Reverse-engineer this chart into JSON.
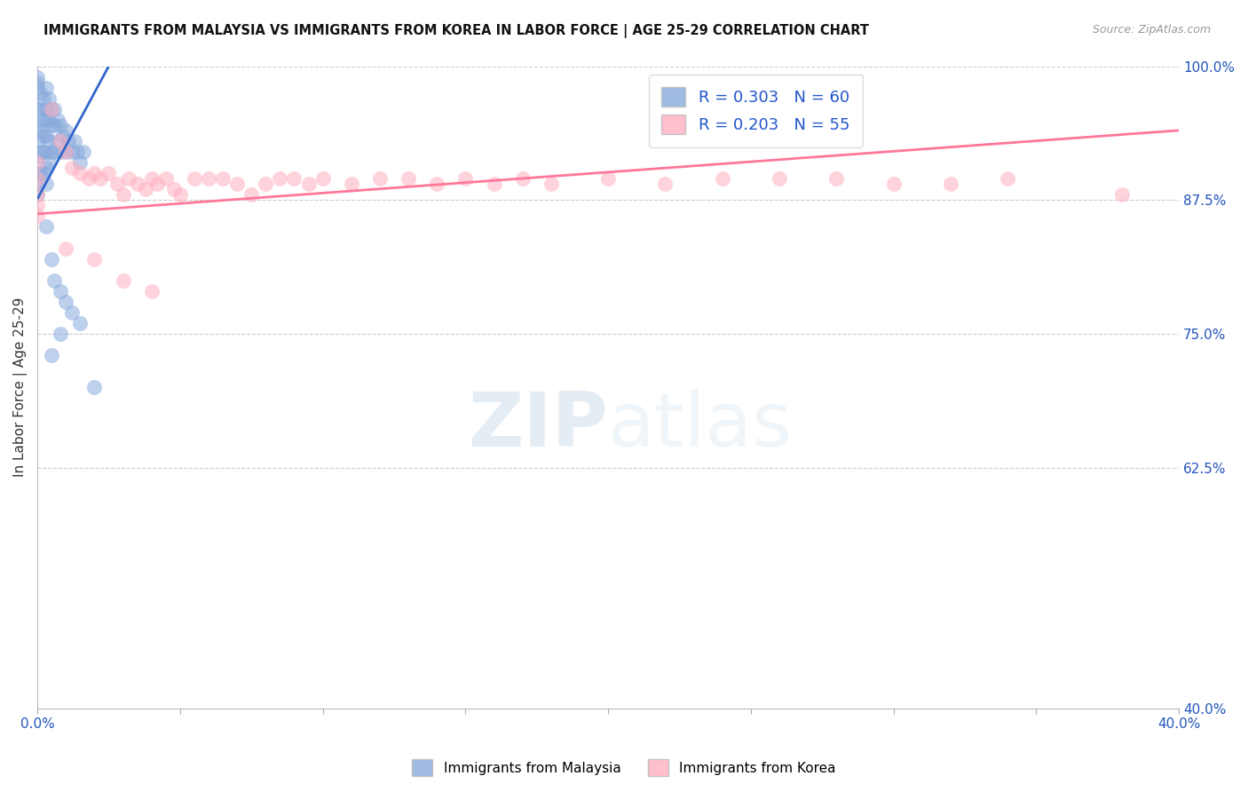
{
  "title": "IMMIGRANTS FROM MALAYSIA VS IMMIGRANTS FROM KOREA IN LABOR FORCE | AGE 25-29 CORRELATION CHART",
  "source": "Source: ZipAtlas.com",
  "ylabel": "In Labor Force | Age 25-29",
  "xlim": [
    0.0,
    0.4
  ],
  "ylim": [
    0.4,
    1.0
  ],
  "xticks": [
    0.0,
    0.05,
    0.1,
    0.15,
    0.2,
    0.25,
    0.3,
    0.35,
    0.4
  ],
  "xticklabels": [
    "0.0%",
    "",
    "",
    "",
    "",
    "",
    "",
    "",
    "40.0%"
  ],
  "yticks": [
    0.4,
    0.625,
    0.75,
    0.875,
    1.0
  ],
  "yticklabels": [
    "40.0%",
    "62.5%",
    "75.0%",
    "87.5%",
    "100.0%"
  ],
  "malaysia_R": 0.303,
  "malaysia_N": 60,
  "korea_R": 0.203,
  "korea_N": 55,
  "malaysia_color": "#88AADD",
  "korea_color": "#FFB0C0",
  "malaysia_line_color": "#3366CC",
  "korea_line_color": "#FF7799",
  "legend_r_color": "#2255CC",
  "malaysia_x": [
    0.0,
    0.0,
    0.0,
    0.0,
    0.0,
    0.0,
    0.0,
    0.0,
    0.0,
    0.0,
    0.001,
    0.001,
    0.001,
    0.001,
    0.001,
    0.002,
    0.002,
    0.002,
    0.002,
    0.002,
    0.003,
    0.003,
    0.003,
    0.003,
    0.003,
    0.003,
    0.003,
    0.004,
    0.004,
    0.004,
    0.004,
    0.005,
    0.005,
    0.005,
    0.006,
    0.006,
    0.006,
    0.007,
    0.007,
    0.008,
    0.008,
    0.009,
    0.01,
    0.01,
    0.011,
    0.012,
    0.013,
    0.014,
    0.015,
    0.016,
    0.003,
    0.005,
    0.006,
    0.008,
    0.01,
    0.012,
    0.015,
    0.02,
    0.008,
    0.005
  ],
  "malaysia_y": [
    0.99,
    0.985,
    0.98,
    0.96,
    0.945,
    0.93,
    0.915,
    0.9,
    0.89,
    0.88,
    0.975,
    0.96,
    0.94,
    0.92,
    0.9,
    0.97,
    0.95,
    0.935,
    0.92,
    0.9,
    0.98,
    0.96,
    0.95,
    0.935,
    0.92,
    0.905,
    0.89,
    0.97,
    0.95,
    0.93,
    0.91,
    0.96,
    0.945,
    0.92,
    0.96,
    0.945,
    0.92,
    0.95,
    0.93,
    0.945,
    0.92,
    0.935,
    0.94,
    0.92,
    0.93,
    0.92,
    0.93,
    0.92,
    0.91,
    0.92,
    0.85,
    0.82,
    0.8,
    0.79,
    0.78,
    0.77,
    0.76,
    0.7,
    0.75,
    0.73
  ],
  "korea_x": [
    0.0,
    0.0,
    0.0,
    0.0,
    0.0,
    0.005,
    0.008,
    0.01,
    0.012,
    0.015,
    0.018,
    0.02,
    0.022,
    0.025,
    0.028,
    0.03,
    0.032,
    0.035,
    0.038,
    0.04,
    0.042,
    0.045,
    0.048,
    0.05,
    0.055,
    0.06,
    0.065,
    0.07,
    0.075,
    0.08,
    0.085,
    0.09,
    0.095,
    0.1,
    0.11,
    0.12,
    0.13,
    0.14,
    0.15,
    0.16,
    0.17,
    0.18,
    0.2,
    0.22,
    0.24,
    0.26,
    0.28,
    0.3,
    0.32,
    0.34,
    0.01,
    0.02,
    0.03,
    0.04,
    0.38
  ],
  "korea_y": [
    0.91,
    0.895,
    0.88,
    0.87,
    0.86,
    0.96,
    0.93,
    0.92,
    0.905,
    0.9,
    0.895,
    0.9,
    0.895,
    0.9,
    0.89,
    0.88,
    0.895,
    0.89,
    0.885,
    0.895,
    0.89,
    0.895,
    0.885,
    0.88,
    0.895,
    0.895,
    0.895,
    0.89,
    0.88,
    0.89,
    0.895,
    0.895,
    0.89,
    0.895,
    0.89,
    0.895,
    0.895,
    0.89,
    0.895,
    0.89,
    0.895,
    0.89,
    0.895,
    0.89,
    0.895,
    0.895,
    0.895,
    0.89,
    0.89,
    0.895,
    0.83,
    0.82,
    0.8,
    0.79,
    0.88
  ],
  "malaysia_line_x0": 0.0,
  "malaysia_line_x1": 0.025,
  "malaysia_line_y0": 0.876,
  "malaysia_line_y1": 1.0,
  "korea_line_x0": 0.0,
  "korea_line_x1": 0.4,
  "korea_line_y0": 0.862,
  "korea_line_y1": 0.94
}
